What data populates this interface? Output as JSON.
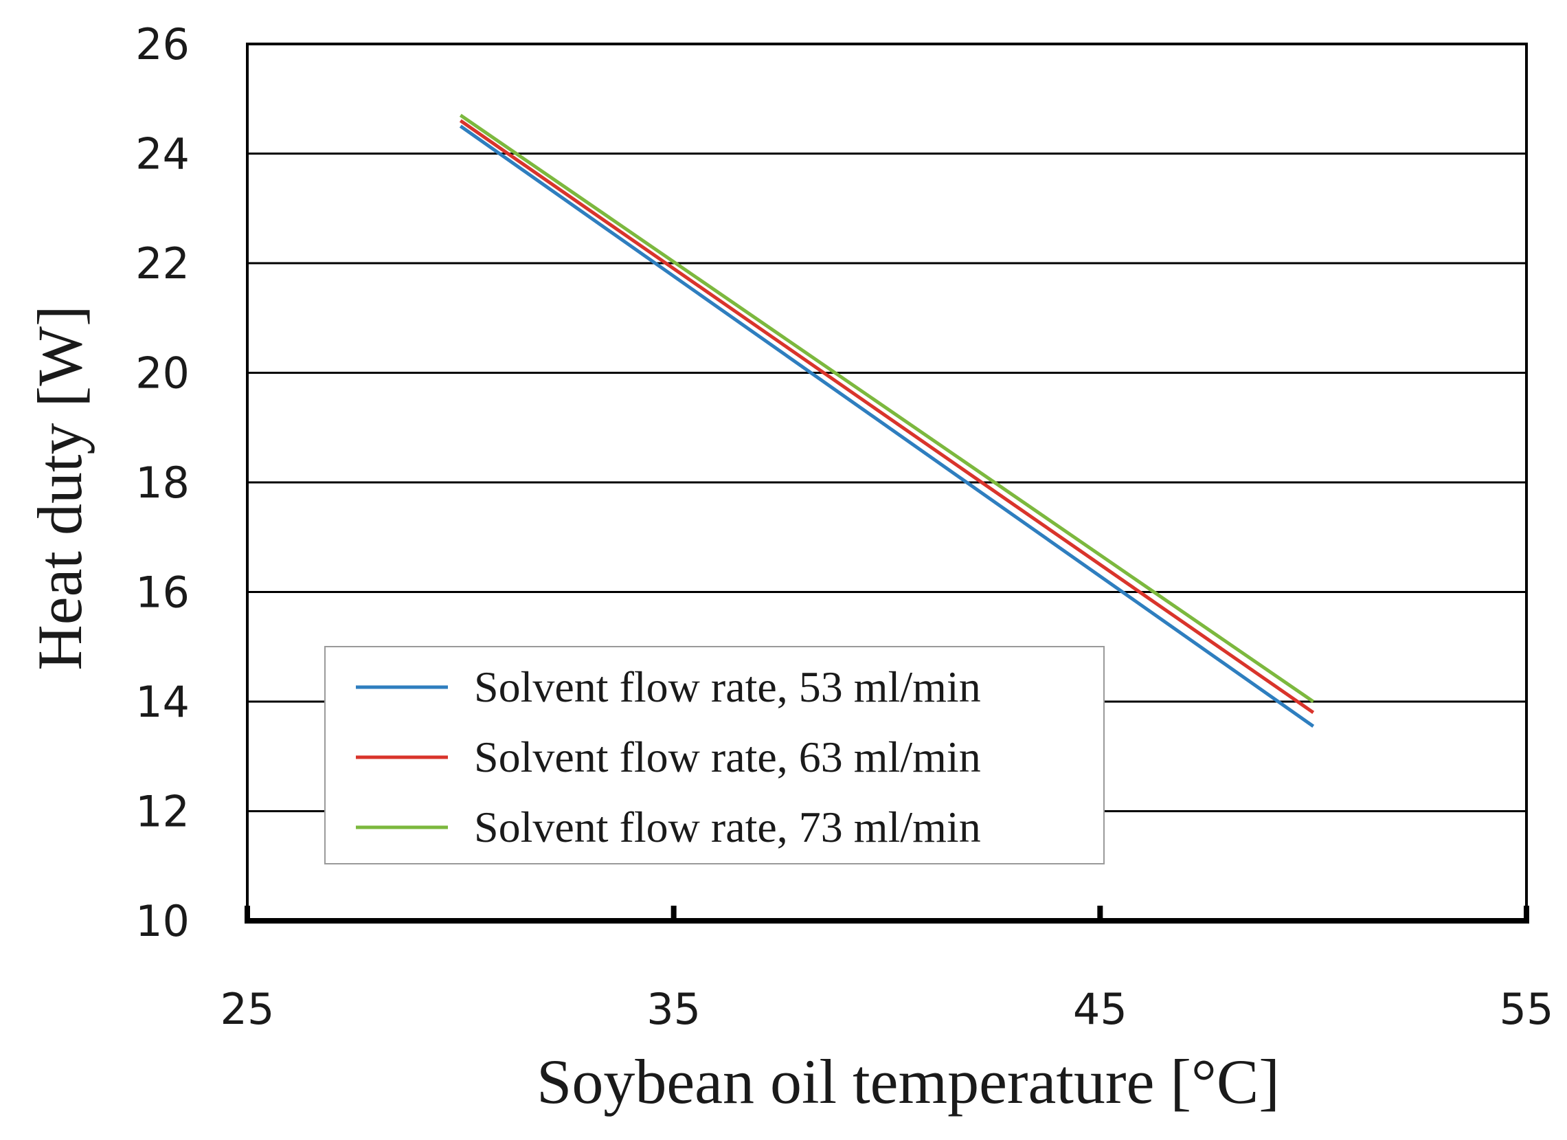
{
  "chart_data": {
    "type": "line",
    "title": "",
    "xlabel": "Soybean oil temperature [°C]",
    "ylabel": "Heat duty [W]",
    "xlim": [
      25,
      55
    ],
    "ylim": [
      10,
      26
    ],
    "xticks": [
      25,
      35,
      45,
      55
    ],
    "yticks": [
      10,
      12,
      14,
      16,
      18,
      20,
      22,
      24,
      26
    ],
    "grid": "horizontal",
    "legend_position": "lower-left",
    "series": [
      {
        "name": "Solvent flow rate, 53 ml/min",
        "color": "#2e7ebf",
        "x": [
          30,
          50
        ],
        "y": [
          24.5,
          13.55
        ]
      },
      {
        "name": "Solvent flow rate, 63 ml/min",
        "color": "#d9342b",
        "x": [
          30,
          50
        ],
        "y": [
          24.6,
          13.8
        ]
      },
      {
        "name": "Solvent flow rate, 73 ml/min",
        "color": "#7cb83e",
        "x": [
          30,
          50
        ],
        "y": [
          24.7,
          14.0
        ]
      }
    ]
  }
}
